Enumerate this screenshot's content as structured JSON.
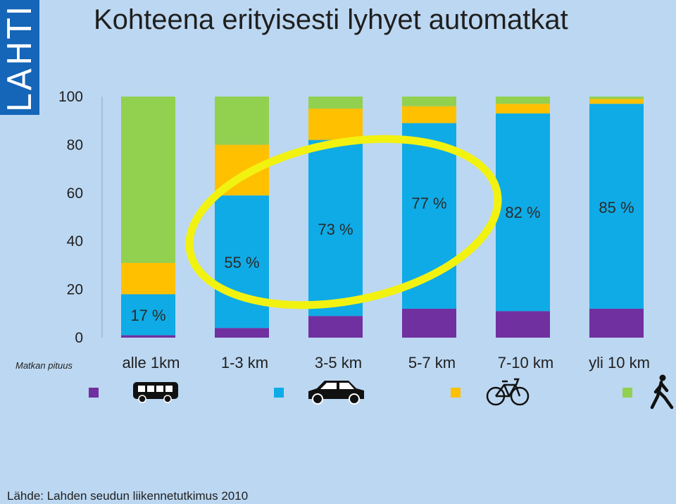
{
  "logo": {
    "text": "LAHTI",
    "color": "#1565b8"
  },
  "title": "Kohteena erityisesti lyhyet automatkat",
  "source": "Lähde:  Lahden seudun liikennetutkimus 2010",
  "highlight": {
    "color": "#f2f211",
    "note": "yellow ellipse highlights 55 %, 73 %, 77 % and 82 % labels"
  },
  "chart_data": {
    "type": "bar",
    "stacked": true,
    "title": "Kohteena erityisesti lyhyet automatkat",
    "xlabel": "Matkan pituus",
    "ylabel": "",
    "ylim": [
      0,
      100
    ],
    "yticks": [
      "0",
      "20",
      "40",
      "60",
      "80",
      "100"
    ],
    "categories": [
      "alle 1km",
      "1-3 km",
      "3-5 km",
      "5-7 km",
      "7-10 km",
      "yli 10 km"
    ],
    "series": [
      {
        "legend_icon": "bus-icon",
        "color": "#7030a0",
        "values": [
          1,
          4,
          9,
          12,
          11,
          12
        ]
      },
      {
        "legend_icon": "car-icon",
        "color": "#0fabe6",
        "values": [
          17,
          55,
          73,
          77,
          82,
          85
        ]
      },
      {
        "legend_icon": "bicycle-icon",
        "color": "#ffc000",
        "values": [
          13,
          21,
          13,
          7,
          4,
          2
        ]
      },
      {
        "legend_icon": "walker-icon",
        "color": "#92d050",
        "values": [
          69,
          20,
          5,
          4,
          3,
          1
        ]
      }
    ],
    "data_labels": [
      "17 %",
      "55 %",
      "73 %",
      "77 %",
      "82 %",
      "85 %"
    ],
    "grid": false,
    "legend_position": "bottom"
  }
}
